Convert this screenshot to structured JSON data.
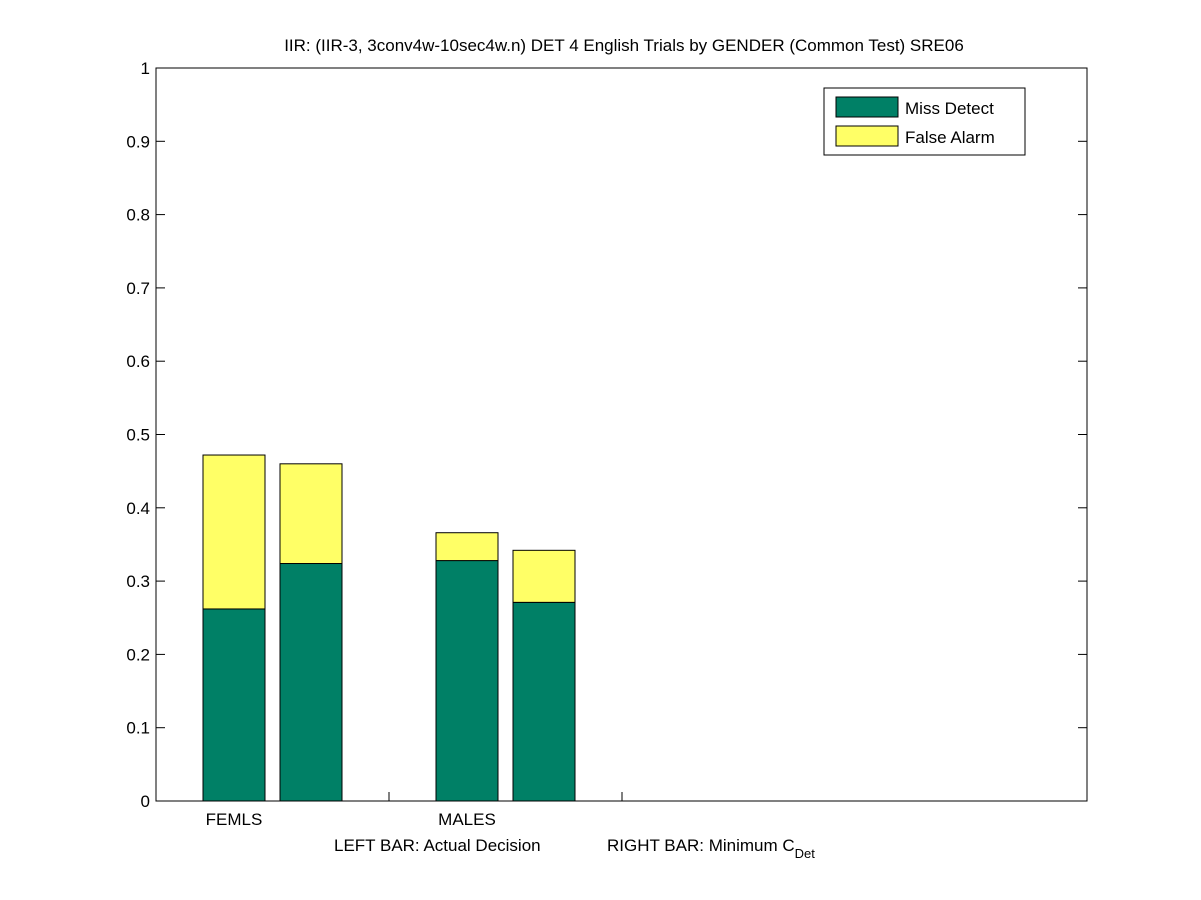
{
  "chart_data": {
    "type": "bar",
    "stacked": true,
    "title": "IIR: (IIR-3, 3conv4w-10sec4w.n) DET 4 English Trials by GENDER (Common Test) SRE06",
    "xlabel_left": "LEFT BAR: Actual Decision",
    "xlabel_right_main": "RIGHT BAR: Minimum C",
    "xlabel_right_sub": "Det",
    "categories": [
      "FEMLS",
      "MALES"
    ],
    "bars_per_category": [
      "Actual Decision",
      "Minimum C_Det"
    ],
    "ylim": [
      0,
      1
    ],
    "yticks": [
      "0",
      "0.1",
      "0.2",
      "0.3",
      "0.4",
      "0.5",
      "0.6",
      "0.7",
      "0.8",
      "0.9",
      "1"
    ],
    "series": [
      {
        "name": "Miss Detect",
        "color": "#008066",
        "values": [
          [
            0.262,
            0.324
          ],
          [
            0.328,
            0.271
          ]
        ]
      },
      {
        "name": "False Alarm",
        "color": "#ffff66",
        "values": [
          [
            0.21,
            0.136
          ],
          [
            0.038,
            0.071
          ]
        ]
      }
    ],
    "legend_position": "top-right",
    "grid": false
  }
}
